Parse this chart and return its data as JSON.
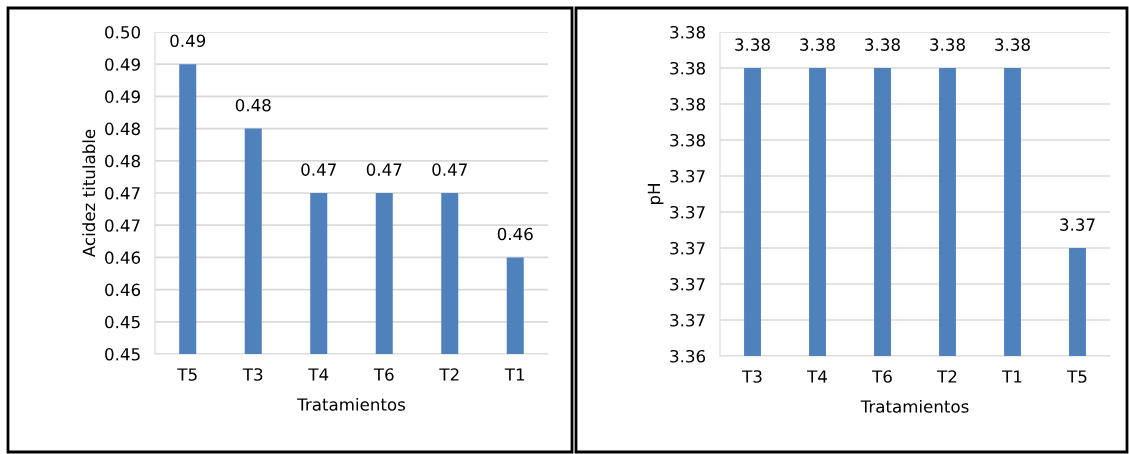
{
  "chart_data": [
    {
      "type": "bar",
      "xlabel": "Tratamientos",
      "ylabel": "Acidez titulable",
      "categories": [
        "T5",
        "T3",
        "T4",
        "T6",
        "T2",
        "T1"
      ],
      "values": [
        0.495,
        0.485,
        0.475,
        0.475,
        0.475,
        0.465
      ],
      "color": "#4f81bd",
      "value_labels": [
        "0.49",
        "0.48",
        "0.47",
        "0.47",
        "0.47",
        "0.46"
      ],
      "ylim": [
        0.45,
        0.5
      ],
      "yticks": [
        {
          "value": 0.45,
          "label": "0.45"
        },
        {
          "value": 0.455,
          "label": "0.45"
        },
        {
          "value": 0.46,
          "label": "0.46"
        },
        {
          "value": 0.465,
          "label": "0.46"
        },
        {
          "value": 0.47,
          "label": "0.47"
        },
        {
          "value": 0.475,
          "label": "0.47"
        },
        {
          "value": 0.48,
          "label": "0.48"
        },
        {
          "value": 0.485,
          "label": "0.48"
        },
        {
          "value": 0.49,
          "label": "0.49"
        },
        {
          "value": 0.495,
          "label": "0.49"
        },
        {
          "value": 0.5,
          "label": "0.50"
        }
      ],
      "grid": "y"
    },
    {
      "type": "bar",
      "xlabel": "Tratamientos",
      "ylabel": "pH",
      "categories": [
        "T3",
        "T4",
        "T6",
        "T2",
        "T1",
        "T5"
      ],
      "values": [
        3.38,
        3.38,
        3.38,
        3.38,
        3.38,
        3.37
      ],
      "color": "#4f81bd",
      "value_labels": [
        "3.38",
        "3.38",
        "3.38",
        "3.38",
        "3.38",
        "3.37"
      ],
      "ylim": [
        3.364,
        3.382
      ],
      "yticks": [
        {
          "value": 3.364,
          "label": "3.36"
        },
        {
          "value": 3.366,
          "label": "3.37"
        },
        {
          "value": 3.368,
          "label": "3.37"
        },
        {
          "value": 3.37,
          "label": "3.37"
        },
        {
          "value": 3.372,
          "label": "3.37"
        },
        {
          "value": 3.374,
          "label": "3.37"
        },
        {
          "value": 3.376,
          "label": "3.38"
        },
        {
          "value": 3.378,
          "label": "3.38"
        },
        {
          "value": 3.38,
          "label": "3.38"
        },
        {
          "value": 3.382,
          "label": "3.38"
        }
      ],
      "grid": "y"
    }
  ]
}
